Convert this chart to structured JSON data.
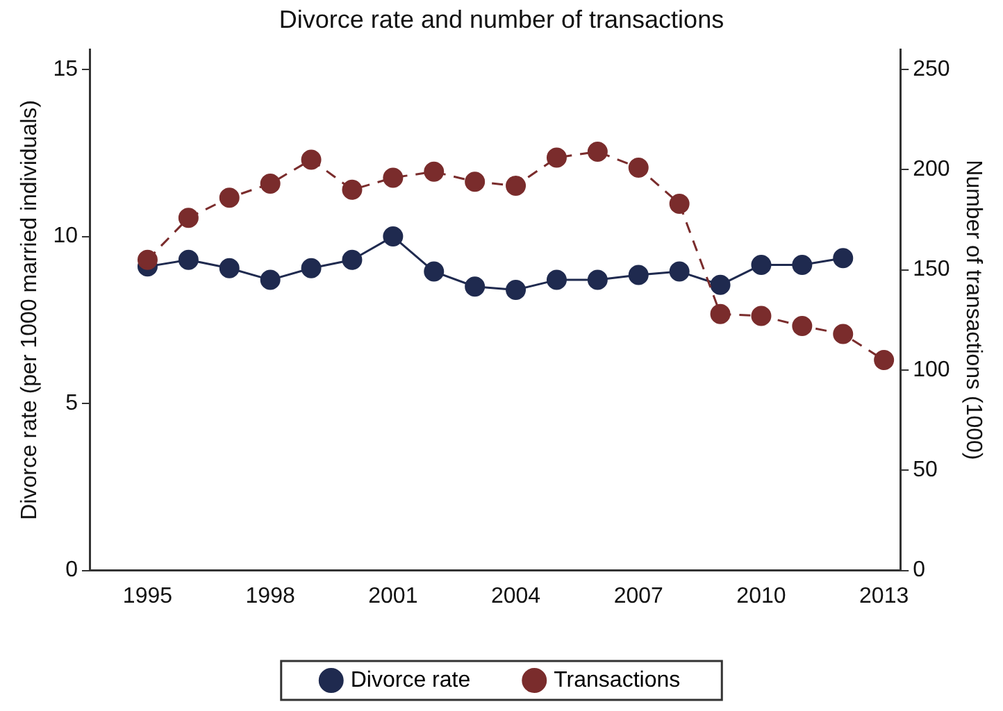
{
  "chart_data": {
    "type": "line",
    "title": "Divorce rate and number of transactions",
    "ylabel": "Divorce rate (per 1000 married individuals)",
    "y2label": "Number of transactions (1000)",
    "x": [
      1995,
      1996,
      1997,
      1998,
      1999,
      2000,
      2001,
      2002,
      2003,
      2004,
      2005,
      2006,
      2007,
      2008,
      2009,
      2010,
      2011,
      2012,
      2013
    ],
    "xlim": [
      1993.6,
      2013.4
    ],
    "xticks": [
      1995,
      1998,
      2001,
      2004,
      2007,
      2010,
      2013
    ],
    "ylim": [
      0,
      15.6
    ],
    "yticks": [
      0,
      5,
      10,
      15
    ],
    "y2lim": [
      0,
      260
    ],
    "y2ticks": [
      0,
      50,
      100,
      150,
      200,
      250
    ],
    "series": [
      {
        "name": "Divorce rate",
        "color": "#1f2a4f",
        "line_style": "solid",
        "values": [
          9.1,
          9.3,
          9.05,
          8.7,
          9.05,
          9.3,
          10.0,
          8.95,
          8.5,
          8.4,
          8.7,
          8.7,
          8.85,
          8.95,
          8.55,
          9.15,
          9.15,
          9.35,
          null
        ]
      },
      {
        "name": "Transactions",
        "color": "#7a2c2c",
        "line_style": "dashed",
        "axis": "y2",
        "values": [
          155,
          176,
          186,
          193,
          205,
          190,
          196,
          199,
          194,
          192,
          206,
          209,
          201,
          183,
          128,
          127,
          122,
          118,
          105
        ]
      }
    ],
    "marker": "circle",
    "grid": false,
    "legend": "bottom"
  }
}
